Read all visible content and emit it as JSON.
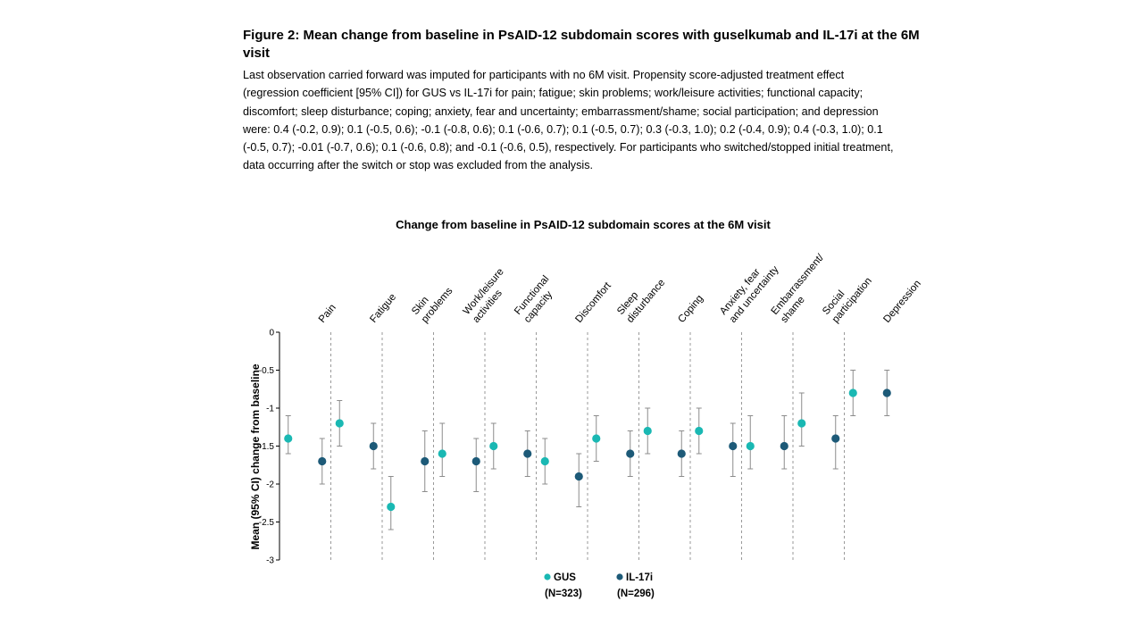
{
  "figure": {
    "title": "Figure 2: Mean change from baseline in PsAID-12 subdomain scores with guselkumab and IL-17i at the 6M visit",
    "caption": "Last observation carried forward was imputed for participants with no 6M visit. Propensity score-adjusted treatment effect (regression coefficient [95% CI]) for GUS vs IL-17i for pain; fatigue; skin problems; work/leisure activities; functional capacity; discomfort; sleep disturbance; coping; anxiety, fear and uncertainty; embarrassment/shame; social participation; and depression were: 0.4 (-0.2, 0.9); 0.1 (-0.5, 0.6); -0.1 (-0.8, 0.6); 0.1 (-0.6, 0.7); 0.1 (-0.5, 0.7); 0.3 (-0.3, 1.0); 0.2 (-0.4, 0.9); 0.4 (-0.3, 1.0); 0.1 (-0.5, 0.7); -0.01 (-0.7, 0.6); 0.1 (-0.6, 0.8); and -0.1 (-0.6, 0.5), respectively. For participants who switched/stopped initial treatment, data occurring after the switch or stop was excluded from the analysis."
  },
  "chart_data": {
    "type": "scatter",
    "title": "Change from baseline in PsAID-12 subdomain scores at the 6M visit",
    "ylabel": "Mean (95% CI) change from baseline",
    "xlabel": "",
    "ylim": [
      -3,
      0
    ],
    "yticks": [
      0,
      -0.5,
      -1,
      -1.5,
      -2,
      -2.5,
      -3
    ],
    "ytick_labels": [
      "0",
      "-0.5",
      "-1",
      "-1.5",
      "-2",
      "-2.5",
      "-3"
    ],
    "categories": [
      [
        "Pain"
      ],
      [
        "Fatigue"
      ],
      [
        "Skin",
        "problems"
      ],
      [
        "Work/leisure",
        "activities"
      ],
      [
        "Functional",
        "capacity"
      ],
      [
        "Discomfort"
      ],
      [
        "Sleep",
        "disturbance"
      ],
      [
        "Coping"
      ],
      [
        "Anxiety, fear",
        "and uncertainty"
      ],
      [
        "Embarrassment/",
        "shame"
      ],
      [
        "Social",
        "participation"
      ],
      [
        "Depression"
      ]
    ],
    "series": [
      {
        "name": "GUS",
        "n_label": "(N=323)",
        "color": "#1ab8b3",
        "values": [
          -1.4,
          -1.2,
          -2.3,
          -1.6,
          -1.5,
          -1.7,
          -1.4,
          -1.3,
          -1.3,
          -1.5,
          -1.2,
          -0.8
        ],
        "ci_low": [
          -1.6,
          -1.5,
          -2.6,
          -1.9,
          -1.8,
          -2.0,
          -1.7,
          -1.6,
          -1.6,
          -1.8,
          -1.5,
          -1.1
        ],
        "ci_high": [
          -1.1,
          -0.9,
          -1.9,
          -1.2,
          -1.2,
          -1.4,
          -1.1,
          -1.0,
          -1.0,
          -1.1,
          -0.8,
          -0.5
        ]
      },
      {
        "name": "IL-17i",
        "n_label": "(N=296)",
        "color": "#1d5a78",
        "values": [
          -1.7,
          -1.5,
          -1.7,
          -1.7,
          -1.6,
          -1.9,
          -1.6,
          -1.6,
          -1.5,
          -1.5,
          -1.4,
          -0.8
        ],
        "ci_low": [
          -2.0,
          -1.8,
          -2.1,
          -2.1,
          -1.9,
          -2.3,
          -1.9,
          -1.9,
          -1.9,
          -1.8,
          -1.8,
          -1.1
        ],
        "ci_high": [
          -1.4,
          -1.2,
          -1.3,
          -1.4,
          -1.3,
          -1.6,
          -1.3,
          -1.3,
          -1.2,
          -1.1,
          -1.1,
          -0.5
        ]
      }
    ],
    "legend_position": "bottom"
  }
}
